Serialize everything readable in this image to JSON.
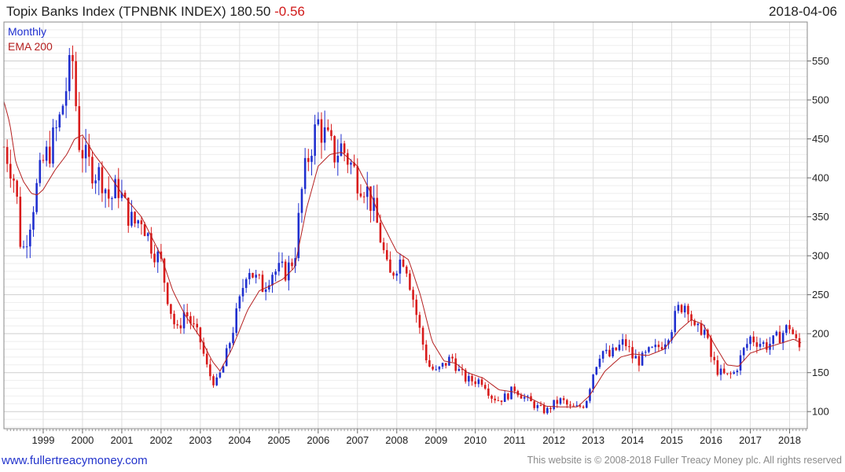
{
  "header": {
    "title": "Topix Banks Index (TPNBNK INDEX) 180.50",
    "change": "-0.56",
    "date": "2018-04-06"
  },
  "footer": {
    "link": "www.fullertreacymoney.com",
    "copyright": "This website is © 2008-2018 Fuller Treacy Money plc. All rights reserved"
  },
  "colors": {
    "up": "#1f2fcf",
    "down": "#d81b1b",
    "ema": "#b52020",
    "grid": "#dddddd"
  },
  "chart_data": {
    "type": "candlestick",
    "title": "Topix Banks Index (TPNBNK INDEX)",
    "frequency": "Monthly",
    "legend": [
      {
        "name": "Monthly",
        "color": "#1f2fcf"
      },
      {
        "name": "EMA 200",
        "color": "#b52020"
      }
    ],
    "legend_position": "top-left",
    "grid": true,
    "ylim": [
      78,
      600
    ],
    "xlim": [
      1998.0,
      2018.45
    ],
    "y_ticks": [
      100,
      150,
      200,
      250,
      300,
      350,
      400,
      450,
      500,
      550
    ],
    "x_ticks": [
      "1999",
      "2000",
      "2001",
      "2002",
      "2003",
      "2004",
      "2005",
      "2006",
      "2007",
      "2008",
      "2009",
      "2010",
      "2011",
      "2012",
      "2013",
      "2014",
      "2015",
      "2016",
      "2017",
      "2018"
    ],
    "close_anchors": [
      [
        1998.0,
        440
      ],
      [
        1998.15,
        420
      ],
      [
        1998.3,
        390
      ],
      [
        1998.45,
        300
      ],
      [
        1998.6,
        330
      ],
      [
        1998.8,
        380
      ],
      [
        1999.0,
        420
      ],
      [
        1999.2,
        440
      ],
      [
        1999.4,
        470
      ],
      [
        1999.6,
        520
      ],
      [
        1999.75,
        550
      ],
      [
        1999.9,
        450
      ],
      [
        2000.1,
        420
      ],
      [
        2000.3,
        410
      ],
      [
        2000.5,
        400
      ],
      [
        2000.7,
        370
      ],
      [
        2000.9,
        390
      ],
      [
        2001.1,
        360
      ],
      [
        2001.3,
        340
      ],
      [
        2001.5,
        350
      ],
      [
        2001.7,
        320
      ],
      [
        2001.9,
        300
      ],
      [
        2002.0,
        290
      ],
      [
        2002.2,
        240
      ],
      [
        2002.4,
        200
      ],
      [
        2002.6,
        230
      ],
      [
        2002.8,
        210
      ],
      [
        2003.0,
        190
      ],
      [
        2003.2,
        150
      ],
      [
        2003.4,
        135
      ],
      [
        2003.6,
        160
      ],
      [
        2003.8,
        200
      ],
      [
        2004.0,
        240
      ],
      [
        2004.2,
        290
      ],
      [
        2004.4,
        270
      ],
      [
        2004.6,
        260
      ],
      [
        2004.8,
        280
      ],
      [
        2005.0,
        280
      ],
      [
        2005.2,
        280
      ],
      [
        2005.4,
        300
      ],
      [
        2005.6,
        390
      ],
      [
        2005.8,
        440
      ],
      [
        2006.0,
        470
      ],
      [
        2006.2,
        450
      ],
      [
        2006.4,
        430
      ],
      [
        2006.6,
        440
      ],
      [
        2006.8,
        420
      ],
      [
        2007.0,
        400
      ],
      [
        2007.2,
        390
      ],
      [
        2007.4,
        360
      ],
      [
        2007.6,
        320
      ],
      [
        2007.8,
        270
      ],
      [
        2008.0,
        290
      ],
      [
        2008.2,
        300
      ],
      [
        2008.4,
        250
      ],
      [
        2008.6,
        200
      ],
      [
        2008.8,
        160
      ],
      [
        2009.0,
        150
      ],
      [
        2009.2,
        160
      ],
      [
        2009.4,
        170
      ],
      [
        2009.6,
        150
      ],
      [
        2009.8,
        140
      ],
      [
        2010.0,
        140
      ],
      [
        2010.2,
        140
      ],
      [
        2010.4,
        120
      ],
      [
        2010.6,
        115
      ],
      [
        2010.8,
        120
      ],
      [
        2011.0,
        130
      ],
      [
        2011.2,
        120
      ],
      [
        2011.4,
        112
      ],
      [
        2011.6,
        105
      ],
      [
        2011.8,
        100
      ],
      [
        2012.0,
        110
      ],
      [
        2012.2,
        115
      ],
      [
        2012.4,
        105
      ],
      [
        2012.6,
        105
      ],
      [
        2012.8,
        110
      ],
      [
        2013.0,
        150
      ],
      [
        2013.2,
        180
      ],
      [
        2013.4,
        170
      ],
      [
        2013.6,
        180
      ],
      [
        2013.8,
        190
      ],
      [
        2014.0,
        170
      ],
      [
        2014.2,
        165
      ],
      [
        2014.4,
        175
      ],
      [
        2014.6,
        180
      ],
      [
        2014.8,
        190
      ],
      [
        2015.0,
        210
      ],
      [
        2015.2,
        235
      ],
      [
        2015.4,
        240
      ],
      [
        2015.6,
        200
      ],
      [
        2015.8,
        210
      ],
      [
        2016.0,
        170
      ],
      [
        2016.2,
        150
      ],
      [
        2016.4,
        145
      ],
      [
        2016.6,
        150
      ],
      [
        2016.8,
        175
      ],
      [
        2017.0,
        195
      ],
      [
        2017.2,
        190
      ],
      [
        2017.4,
        185
      ],
      [
        2017.6,
        190
      ],
      [
        2017.8,
        200
      ],
      [
        2018.0,
        210
      ],
      [
        2018.2,
        185
      ],
      [
        2018.27,
        180.5
      ]
    ],
    "ema_anchors": [
      [
        1998.0,
        498
      ],
      [
        1998.15,
        470
      ],
      [
        1998.3,
        420
      ],
      [
        1998.5,
        395
      ],
      [
        1998.7,
        380
      ],
      [
        1998.85,
        378
      ],
      [
        1999.0,
        385
      ],
      [
        1999.3,
        410
      ],
      [
        1999.6,
        430
      ],
      [
        1999.8,
        450
      ],
      [
        2000.0,
        455
      ],
      [
        2000.3,
        430
      ],
      [
        2000.6,
        410
      ],
      [
        2001.0,
        380
      ],
      [
        2001.5,
        350
      ],
      [
        2002.0,
        300
      ],
      [
        2002.3,
        255
      ],
      [
        2002.6,
        225
      ],
      [
        2003.0,
        195
      ],
      [
        2003.3,
        165
      ],
      [
        2003.5,
        152
      ],
      [
        2003.8,
        180
      ],
      [
        2004.2,
        230
      ],
      [
        2004.5,
        255
      ],
      [
        2004.8,
        262
      ],
      [
        2005.1,
        270
      ],
      [
        2005.4,
        285
      ],
      [
        2005.7,
        360
      ],
      [
        2006.0,
        415
      ],
      [
        2006.3,
        430
      ],
      [
        2006.6,
        433
      ],
      [
        2007.0,
        415
      ],
      [
        2007.3,
        385
      ],
      [
        2007.6,
        345
      ],
      [
        2008.0,
        305
      ],
      [
        2008.3,
        295
      ],
      [
        2008.6,
        250
      ],
      [
        2008.9,
        190
      ],
      [
        2009.2,
        165
      ],
      [
        2009.5,
        162
      ],
      [
        2009.8,
        150
      ],
      [
        2010.2,
        143
      ],
      [
        2010.6,
        128
      ],
      [
        2011.0,
        125
      ],
      [
        2011.4,
        117
      ],
      [
        2011.8,
        107
      ],
      [
        2012.2,
        106
      ],
      [
        2012.6,
        106
      ],
      [
        2012.9,
        120
      ],
      [
        2013.3,
        152
      ],
      [
        2013.7,
        170
      ],
      [
        2014.0,
        174
      ],
      [
        2014.4,
        172
      ],
      [
        2014.8,
        180
      ],
      [
        2015.2,
        205
      ],
      [
        2015.5,
        218
      ],
      [
        2015.8,
        212
      ],
      [
        2016.1,
        185
      ],
      [
        2016.4,
        160
      ],
      [
        2016.7,
        158
      ],
      [
        2017.0,
        175
      ],
      [
        2017.4,
        182
      ],
      [
        2017.8,
        188
      ],
      [
        2018.1,
        193
      ],
      [
        2018.3,
        188
      ]
    ]
  }
}
